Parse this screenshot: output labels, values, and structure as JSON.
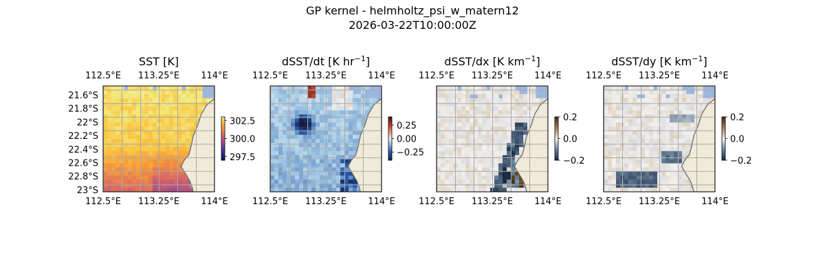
{
  "figure": {
    "title_line1": "GP kernel - helmholtz_psi_w_matern12",
    "title_line2": "2026-03-22T10:00:00Z"
  },
  "colors": {
    "land": "#efebd8",
    "ocean_mask": "#9db6df",
    "grid": "#a9a9a9",
    "coast": "#6b6b6b"
  },
  "chart_data": [
    {
      "type": "heatmap",
      "title": "SST [K]",
      "title_sup": "",
      "title_suffix": "",
      "colormap": "thermal",
      "x_ticks": [
        "112.5°E",
        "113.25°E",
        "114°E"
      ],
      "y_ticks": [
        "21.6°S",
        "21.8°S",
        "22°S",
        "22.2°S",
        "22.4°S",
        "22.6°S",
        "22.8°S",
        "23°S"
      ],
      "show_lat_labels": true,
      "extent": {
        "lon": [
          112.5,
          114.0
        ],
        "lat": [
          -23.04,
          -21.45
        ]
      },
      "colorbar": {
        "range": [
          297.0,
          303.0
        ],
        "ticks": [
          "302.5",
          "300.0",
          "297.5"
        ],
        "tick_values": [
          302.5,
          300.0,
          297.5
        ]
      },
      "grid": true
    },
    {
      "type": "heatmap",
      "title": "dSST/dt [K hr",
      "title_sup": "−1",
      "title_suffix": "]",
      "colormap": "balance",
      "x_ticks": [
        "112.5°E",
        "113.25°E",
        "114°E"
      ],
      "y_ticks": [],
      "show_lat_labels": false,
      "extent": {
        "lon": [
          112.5,
          114.0
        ],
        "lat": [
          -23.04,
          -21.45
        ]
      },
      "colorbar": {
        "range": [
          -0.4,
          0.4
        ],
        "ticks": [
          "0.25",
          "0.00",
          "−0.25"
        ],
        "tick_values": [
          0.25,
          0.0,
          -0.25
        ]
      },
      "grid": true
    },
    {
      "type": "heatmap",
      "title": "dSST/dx [K km",
      "title_sup": "−1",
      "title_suffix": "]",
      "colormap": "diff",
      "x_ticks": [
        "112.5°E",
        "113.25°E",
        "114°E"
      ],
      "y_ticks": [],
      "show_lat_labels": false,
      "extent": {
        "lon": [
          112.5,
          114.0
        ],
        "lat": [
          -23.04,
          -21.45
        ]
      },
      "colorbar": {
        "range": [
          -0.2,
          0.2
        ],
        "ticks": [
          "0.2",
          "0.0",
          "−0.2"
        ],
        "tick_values": [
          0.2,
          0.0,
          -0.2
        ]
      },
      "grid": true
    },
    {
      "type": "heatmap",
      "title": "dSST/dy [K km",
      "title_sup": "−1",
      "title_suffix": "]",
      "colormap": "diff",
      "x_ticks": [
        "112.5°E",
        "113.25°E",
        "114°E"
      ],
      "y_ticks": [],
      "show_lat_labels": false,
      "extent": {
        "lon": [
          112.5,
          114.0
        ],
        "lat": [
          -23.04,
          -21.45
        ]
      },
      "colorbar": {
        "range": [
          -0.2,
          0.2
        ],
        "ticks": [
          "0.2",
          "0.0",
          "−0.2"
        ],
        "tick_values": [
          0.2,
          0.0,
          -0.2
        ]
      },
      "grid": true
    }
  ]
}
